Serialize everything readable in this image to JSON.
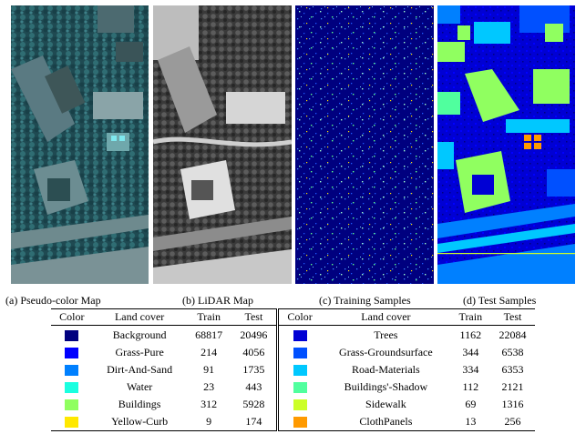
{
  "captions": {
    "a": "(a) Pseudo-color Map",
    "b": "(b) LiDAR Map",
    "c": "(c) Training Samples",
    "d": "(d) Test Samples"
  },
  "table": {
    "headers": [
      "Color",
      "Land cover",
      "Train",
      "Test",
      "Color",
      "Land cover",
      "Train",
      "Test"
    ],
    "rows": [
      {
        "left": {
          "color": "#00007f",
          "land_cover": "Background",
          "train": "68817",
          "test": "20496"
        },
        "right": {
          "color": "#0000d4",
          "land_cover": "Trees",
          "train": "1162",
          "test": "22084"
        }
      },
      {
        "left": {
          "color": "#0000ff",
          "land_cover": "Grass-Pure",
          "train": "214",
          "test": "4056"
        },
        "right": {
          "color": "#0050ff",
          "land_cover": "Grass-Groundsurface",
          "train": "344",
          "test": "6538"
        }
      },
      {
        "left": {
          "color": "#0080ff",
          "land_cover": "Dirt-And-Sand",
          "train": "91",
          "test": "1735"
        },
        "right": {
          "color": "#00c8ff",
          "land_cover": "Road-Materials",
          "train": "334",
          "test": "6353"
        }
      },
      {
        "left": {
          "color": "#19ffe0",
          "land_cover": "Water",
          "train": "23",
          "test": "443"
        },
        "right": {
          "color": "#50ff9e",
          "land_cover": "Buildings'-Shadow",
          "train": "112",
          "test": "2121"
        }
      },
      {
        "left": {
          "color": "#90ff60",
          "land_cover": "Buildings",
          "train": "312",
          "test": "5928"
        },
        "right": {
          "color": "#ccff28",
          "land_cover": "Sidewalk",
          "train": "69",
          "test": "1316"
        }
      },
      {
        "left": {
          "color": "#ffe800",
          "land_cover": "Yellow-Curb",
          "train": "9",
          "test": "174"
        },
        "right": {
          "color": "#ff9a00",
          "land_cover": "ClothPanels",
          "train": "13",
          "test": "256"
        }
      }
    ]
  }
}
